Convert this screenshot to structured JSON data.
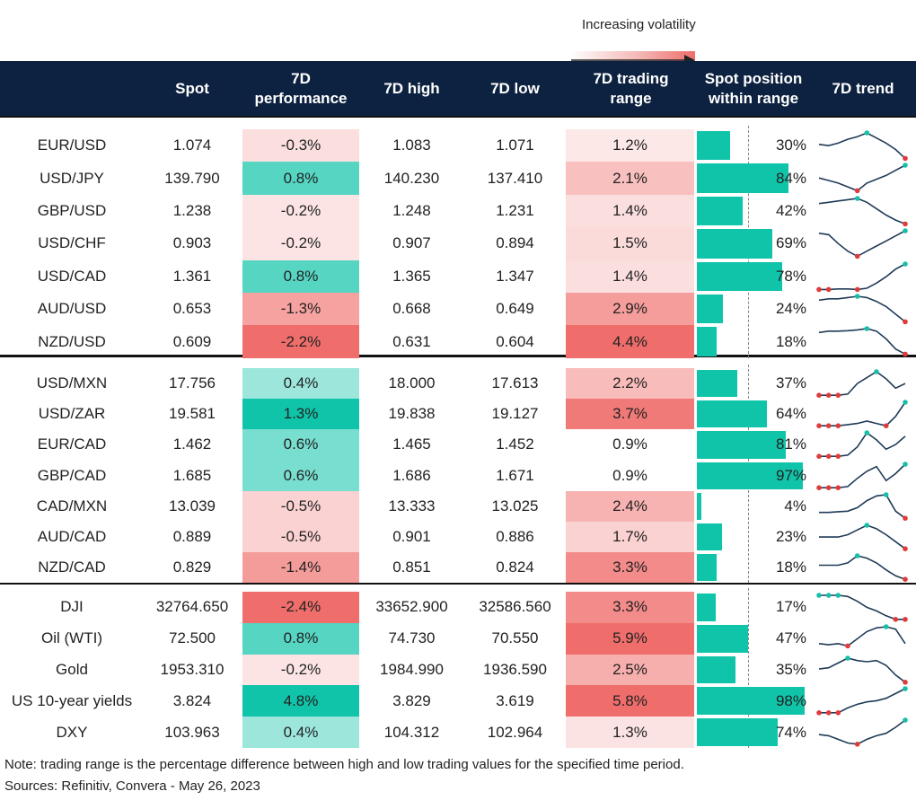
{
  "legend": {
    "label": "Increasing volatility"
  },
  "headers": {
    "spot": "Spot",
    "perf": "7D\nperformance",
    "high": "7D high",
    "low": "7D low",
    "range": "7D trading\nrange",
    "position": "Spot position\nwithin range",
    "trend": "7D trend"
  },
  "colors": {
    "header_bg": "#0d2240",
    "teal": "#10c4aa",
    "red": "#ef6e6b",
    "trend_line": "#1f3b57",
    "high_marker": "#16bfa8",
    "low_marker": "#e03a3a"
  },
  "chart_data": {
    "type": "table",
    "groups": [
      {
        "rows": [
          {
            "name": "EUR/USD",
            "spot": "1.074",
            "perf": "-0.3%",
            "perf_value": -0.3,
            "high": "1.083",
            "low": "1.071",
            "range": "1.2%",
            "range_value": 1.2,
            "position": "30%",
            "position_value": 30,
            "trend": [
              0.55,
              0.5,
              0.6,
              0.75,
              0.85,
              1.0,
              0.8,
              0.6,
              0.35,
              0.0
            ]
          },
          {
            "name": "USD/JPY",
            "spot": "139.790",
            "perf": "0.8%",
            "perf_value": 0.8,
            "high": "140.230",
            "low": "137.410",
            "range": "2.1%",
            "range_value": 2.1,
            "position": "84%",
            "position_value": 84,
            "trend": [
              0.5,
              0.4,
              0.3,
              0.15,
              0.0,
              0.3,
              0.45,
              0.6,
              0.8,
              1.0
            ]
          },
          {
            "name": "GBP/USD",
            "spot": "1.238",
            "perf": "-0.2%",
            "perf_value": -0.2,
            "high": "1.248",
            "low": "1.231",
            "range": "1.4%",
            "range_value": 1.4,
            "position": "42%",
            "position_value": 42,
            "trend": [
              0.8,
              0.85,
              0.9,
              0.95,
              1.0,
              0.85,
              0.6,
              0.35,
              0.15,
              0.0
            ]
          },
          {
            "name": "USD/CHF",
            "spot": "0.903",
            "perf": "-0.2%",
            "perf_value": -0.2,
            "high": "0.907",
            "low": "0.894",
            "range": "1.5%",
            "range_value": 1.5,
            "position": "69%",
            "position_value": 69,
            "trend": [
              0.9,
              0.85,
              0.5,
              0.2,
              0.0,
              0.2,
              0.4,
              0.6,
              0.8,
              1.0
            ]
          },
          {
            "name": "USD/CAD",
            "spot": "1.361",
            "perf": "0.8%",
            "perf_value": 0.8,
            "high": "1.365",
            "low": "1.347",
            "range": "1.4%",
            "range_value": 1.4,
            "position": "78%",
            "position_value": 78,
            "trend": [
              0.0,
              0.0,
              0.02,
              0.02,
              0.0,
              0.05,
              0.25,
              0.5,
              0.8,
              1.0
            ]
          },
          {
            "name": "AUD/USD",
            "spot": "0.653",
            "perf": "-1.3%",
            "perf_value": -1.3,
            "high": "0.668",
            "low": "0.649",
            "range": "2.9%",
            "range_value": 2.9,
            "position": "24%",
            "position_value": 24,
            "trend": [
              0.85,
              0.9,
              0.9,
              0.95,
              1.0,
              0.95,
              0.8,
              0.6,
              0.3,
              0.0
            ]
          },
          {
            "name": "NZD/USD",
            "spot": "0.609",
            "perf": "-2.2%",
            "perf_value": -2.2,
            "high": "0.631",
            "low": "0.604",
            "range": "4.4%",
            "range_value": 4.4,
            "position": "18%",
            "position_value": 18,
            "trend": [
              0.85,
              0.9,
              0.9,
              0.92,
              0.95,
              1.0,
              0.9,
              0.6,
              0.2,
              0.0
            ]
          }
        ]
      },
      {
        "rows": [
          {
            "name": "USD/MXN",
            "spot": "17.756",
            "perf": "0.4%",
            "perf_value": 0.4,
            "high": "18.000",
            "low": "17.613",
            "range": "2.2%",
            "range_value": 2.2,
            "position": "37%",
            "position_value": 37,
            "trend": [
              0.0,
              0.0,
              0.0,
              0.05,
              0.5,
              0.75,
              1.0,
              0.7,
              0.3,
              0.5
            ]
          },
          {
            "name": "USD/ZAR",
            "spot": "19.581",
            "perf": "1.3%",
            "perf_value": 1.3,
            "high": "19.838",
            "low": "19.127",
            "range": "3.7%",
            "range_value": 3.7,
            "position": "64%",
            "position_value": 64,
            "trend": [
              0.0,
              0.0,
              0.0,
              0.05,
              0.1,
              0.2,
              0.1,
              0.0,
              0.4,
              1.0
            ]
          },
          {
            "name": "EUR/CAD",
            "spot": "1.462",
            "perf": "0.6%",
            "perf_value": 0.6,
            "high": "1.465",
            "low": "1.452",
            "range": "0.9%",
            "range_value": 0.9,
            "position": "81%",
            "position_value": 81,
            "trend": [
              0.0,
              0.0,
              0.0,
              0.05,
              0.4,
              1.0,
              0.7,
              0.3,
              0.5,
              0.85
            ]
          },
          {
            "name": "GBP/CAD",
            "spot": "1.685",
            "perf": "0.6%",
            "perf_value": 0.6,
            "high": "1.686",
            "low": "1.671",
            "range": "0.9%",
            "range_value": 0.9,
            "position": "97%",
            "position_value": 97,
            "trend": [
              0.0,
              0.0,
              0.0,
              0.05,
              0.4,
              0.7,
              0.9,
              0.3,
              0.6,
              1.0
            ]
          },
          {
            "name": "CAD/MXN",
            "spot": "13.039",
            "perf": "-0.5%",
            "perf_value": -0.5,
            "high": "13.333",
            "low": "13.025",
            "range": "2.4%",
            "range_value": 2.4,
            "position": "4%",
            "position_value": 4,
            "trend": [
              0.25,
              0.25,
              0.28,
              0.3,
              0.45,
              0.75,
              0.95,
              1.0,
              0.3,
              0.0
            ]
          },
          {
            "name": "AUD/CAD",
            "spot": "0.889",
            "perf": "-0.5%",
            "perf_value": -0.5,
            "high": "0.901",
            "low": "0.886",
            "range": "1.7%",
            "range_value": 1.7,
            "position": "23%",
            "position_value": 23,
            "trend": [
              0.5,
              0.5,
              0.5,
              0.6,
              0.8,
              1.0,
              0.85,
              0.6,
              0.3,
              0.0
            ]
          },
          {
            "name": "NZD/CAD",
            "spot": "0.829",
            "perf": "-1.4%",
            "perf_value": -1.4,
            "high": "0.851",
            "low": "0.824",
            "range": "3.3%",
            "range_value": 3.3,
            "position": "18%",
            "position_value": 18,
            "trend": [
              0.6,
              0.6,
              0.6,
              0.7,
              1.0,
              0.9,
              0.7,
              0.4,
              0.15,
              0.0
            ]
          }
        ]
      },
      {
        "rows": [
          {
            "name": "DJI",
            "spot": "32764.650",
            "perf": "-2.4%",
            "perf_value": -2.4,
            "high": "33652.900",
            "low": "32586.560",
            "range": "3.3%",
            "range_value": 3.3,
            "position": "17%",
            "position_value": 17,
            "trend": [
              1.0,
              1.0,
              1.0,
              0.95,
              0.75,
              0.5,
              0.35,
              0.15,
              0.0,
              0.0
            ]
          },
          {
            "name": "Oil (WTI)",
            "spot": "72.500",
            "perf": "0.8%",
            "perf_value": 0.8,
            "high": "74.730",
            "low": "70.550",
            "range": "5.9%",
            "range_value": 5.9,
            "position": "47%",
            "position_value": 47,
            "trend": [
              0.3,
              0.25,
              0.3,
              0.2,
              0.5,
              0.8,
              0.95,
              1.0,
              0.9,
              0.3
            ]
          },
          {
            "name": "Gold",
            "spot": "1953.310",
            "perf": "-0.2%",
            "perf_value": -0.2,
            "high": "1984.990",
            "low": "1936.590",
            "range": "2.5%",
            "range_value": 2.5,
            "position": "35%",
            "position_value": 35,
            "trend": [
              0.55,
              0.6,
              0.8,
              1.0,
              0.9,
              0.85,
              0.9,
              0.7,
              0.3,
              0.0
            ]
          },
          {
            "name": "US 10-year yields",
            "spot": "3.824",
            "perf": "4.8%",
            "perf_value": 4.8,
            "high": "3.829",
            "low": "3.619",
            "range": "5.8%",
            "range_value": 5.8,
            "position": "98%",
            "position_value": 98,
            "trend": [
              0.0,
              0.0,
              0.0,
              0.2,
              0.35,
              0.45,
              0.5,
              0.6,
              0.8,
              1.0
            ]
          },
          {
            "name": "DXY",
            "spot": "103.963",
            "perf": "0.4%",
            "perf_value": 0.4,
            "high": "104.312",
            "low": "102.964",
            "range": "1.3%",
            "range_value": 1.3,
            "position": "74%",
            "position_value": 74,
            "trend": [
              0.4,
              0.35,
              0.2,
              0.05,
              0.0,
              0.2,
              0.35,
              0.45,
              0.7,
              1.0
            ]
          }
        ]
      }
    ]
  },
  "footer": {
    "note": "Note: trading range is the percentage difference between high and low trading values for the specified time period.",
    "sources": "Sources: Refinitiv, Convera - May 26, 2023"
  }
}
